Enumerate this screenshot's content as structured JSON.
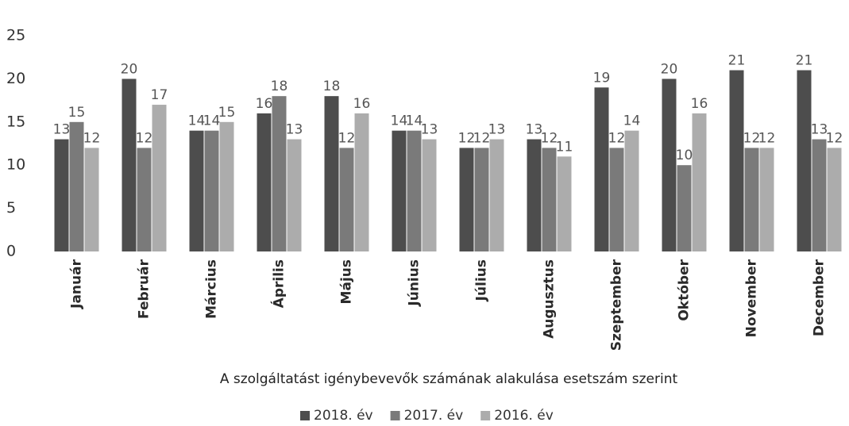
{
  "chart_data": {
    "type": "bar",
    "title": "A szolgáltatást igénybevevők számának alakulása esetszám szerint",
    "categories": [
      "Január",
      "Február",
      "Március",
      "Április",
      "Május",
      "Június",
      "Július",
      "Augusztus",
      "Szeptember",
      "Október",
      "November",
      "December"
    ],
    "series": [
      {
        "name": "2018. év",
        "color": "#4d4d4d",
        "values": [
          13,
          20,
          14,
          16,
          18,
          14,
          12,
          13,
          19,
          20,
          21,
          21
        ]
      },
      {
        "name": "2017. év",
        "color": "#7a7a7a",
        "values": [
          15,
          12,
          14,
          18,
          12,
          14,
          12,
          12,
          12,
          10,
          12,
          13
        ]
      },
      {
        "name": "2016. év",
        "color": "#acacac",
        "values": [
          12,
          17,
          15,
          13,
          16,
          13,
          13,
          11,
          14,
          16,
          12,
          12
        ]
      }
    ],
    "ylim": [
      0,
      25
    ],
    "yticks": [
      0,
      5,
      10,
      15,
      20,
      25
    ],
    "grid": false,
    "legend": "bottom"
  }
}
